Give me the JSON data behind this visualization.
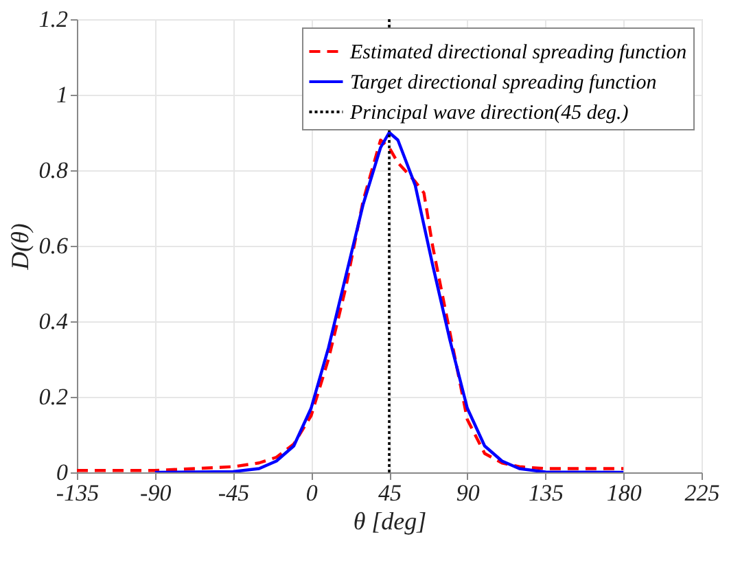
{
  "chart_data": {
    "type": "line",
    "xlabel": "θ [deg]",
    "ylabel": "D(θ)",
    "xlim": [
      -135,
      225
    ],
    "xticks": [
      -135,
      -90,
      -45,
      0,
      45,
      90,
      135,
      180,
      225
    ],
    "ylim": [
      0,
      1.2
    ],
    "yticks": [
      0,
      0.2,
      0.4,
      0.6,
      0.8,
      1,
      1.2
    ],
    "grid": true,
    "legend": "top right",
    "series": [
      {
        "name": "Estimated directional spreading function",
        "color": "#ff0000",
        "line_style": "dashed",
        "x": [
          -135,
          -90,
          -45,
          -30,
          -20,
          -10,
          0,
          10,
          20,
          30,
          40,
          45,
          50,
          60,
          65,
          70,
          80,
          90,
          100,
          110,
          120,
          135,
          180
        ],
        "values": [
          0.005,
          0.005,
          0.015,
          0.025,
          0.04,
          0.075,
          0.15,
          0.3,
          0.49,
          0.72,
          0.88,
          0.86,
          0.82,
          0.77,
          0.74,
          0.6,
          0.37,
          0.14,
          0.05,
          0.025,
          0.015,
          0.01,
          0.01
        ]
      },
      {
        "name": "Target directional spreading function",
        "color": "#0000ff",
        "line_style": "solid",
        "x": [
          -90,
          -45,
          -30,
          -20,
          -10,
          0,
          10,
          20,
          30,
          40,
          45,
          50,
          60,
          70,
          80,
          90,
          100,
          110,
          120,
          135,
          180
        ],
        "values": [
          0,
          0.002,
          0.01,
          0.03,
          0.07,
          0.17,
          0.33,
          0.52,
          0.71,
          0.86,
          0.9,
          0.88,
          0.76,
          0.55,
          0.35,
          0.17,
          0.07,
          0.03,
          0.01,
          0.001,
          0
        ]
      }
    ],
    "ref_lines": [
      {
        "axis": "x",
        "value": 45,
        "label": "Principal wave direction(45 deg.)",
        "color": "#000000",
        "line_style": "dotted"
      }
    ]
  }
}
